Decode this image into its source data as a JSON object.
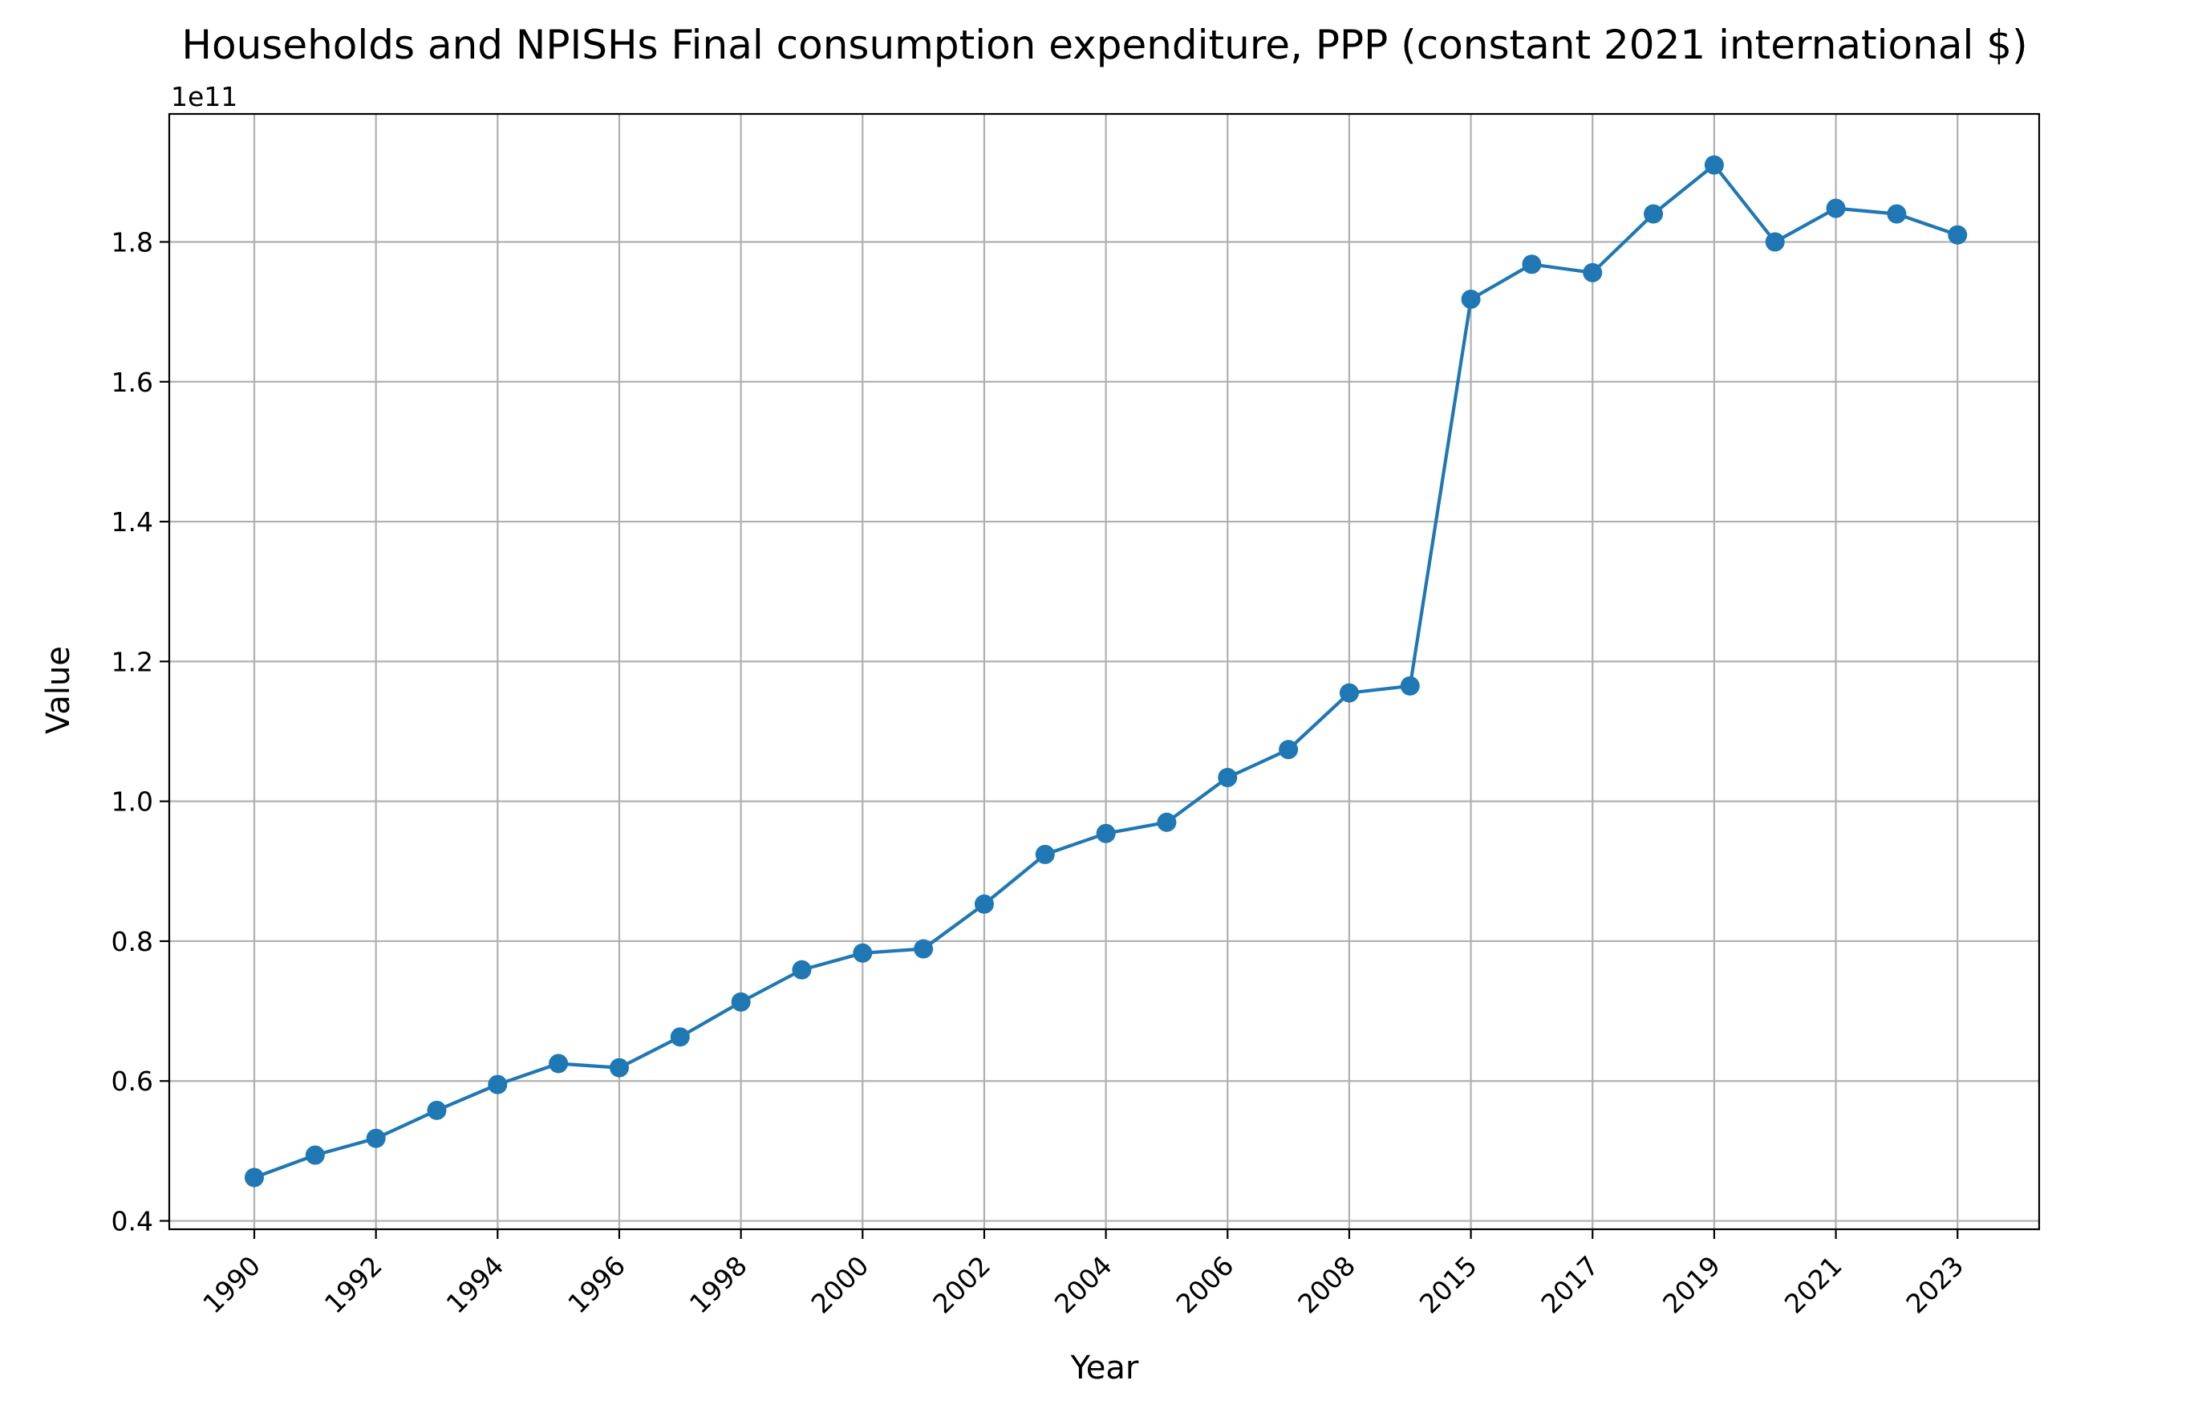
{
  "chart_data": {
    "type": "line",
    "title": "Households and NPISHs Final consumption expenditure, PPP (constant 2021 international $)",
    "xlabel": "Year",
    "ylabel": "Value",
    "y_offset_label": "1e11",
    "grid": true,
    "series_color": "#1f77b4",
    "categories": [
      "1990",
      "1991",
      "1992",
      "1993",
      "1994",
      "1995",
      "1996",
      "1997",
      "1998",
      "1999",
      "2000",
      "2001",
      "2002",
      "2003",
      "2004",
      "2005",
      "2006",
      "2007",
      "2008",
      "2009",
      "2015",
      "2016",
      "2017",
      "2018",
      "2019",
      "2020",
      "2021",
      "2022",
      "2023"
    ],
    "x_tick_labels": [
      "1990",
      "1992",
      "1994",
      "1996",
      "1998",
      "2000",
      "2002",
      "2004",
      "2006",
      "2008",
      "2015",
      "2017",
      "2019",
      "2021",
      "2023"
    ],
    "values": [
      0.462,
      0.494,
      0.518,
      0.558,
      0.595,
      0.625,
      0.619,
      0.663,
      0.713,
      0.759,
      0.783,
      0.789,
      0.853,
      0.924,
      0.954,
      0.97,
      1.034,
      1.074,
      1.155,
      1.165,
      1.718,
      1.768,
      1.756,
      1.84,
      1.91,
      1.8,
      1.848,
      1.84,
      1.81
    ],
    "ylim": [
      0.388,
      1.983
    ],
    "y_ticks": [
      0.4,
      0.6,
      0.8,
      1.0,
      1.2,
      1.4,
      1.6,
      1.8
    ],
    "y_tick_labels": [
      "0.4",
      "0.6",
      "0.8",
      "1.0",
      "1.2",
      "1.4",
      "1.6",
      "1.8"
    ]
  }
}
